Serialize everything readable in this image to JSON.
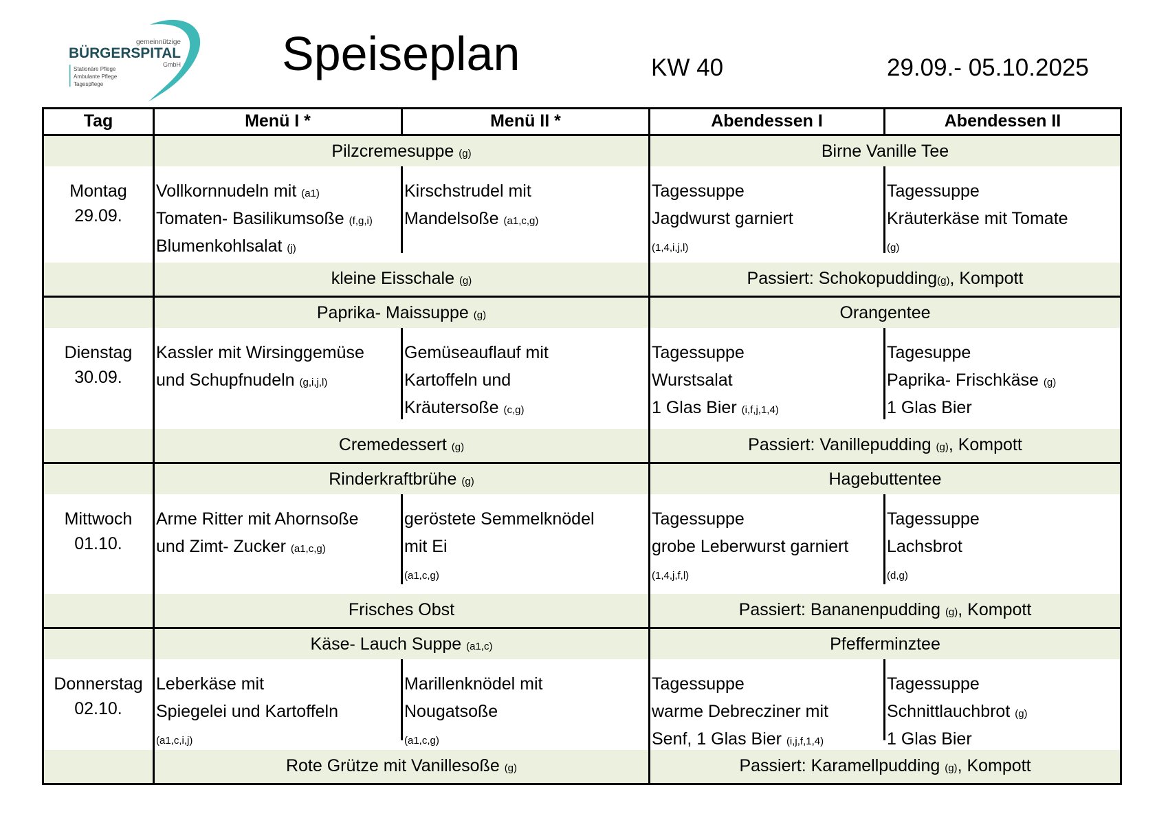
{
  "logo": {
    "line1": "gemeinnützige",
    "name": "BÜRGERSPITAL",
    "suffix": "GmbH",
    "services": [
      "Stationäre Pflege",
      "Ambulante Pflege",
      "Tagespflege"
    ],
    "accent": "#3fb8b8",
    "text_color": "#1f4e5a"
  },
  "header": {
    "title": "Speiseplan",
    "week": "KW 40",
    "date_range": "29.09.- 05.10.2025"
  },
  "columns": [
    "Tag",
    "Menü I *",
    "Menü II *",
    "Abendessen I",
    "Abendessen II"
  ],
  "colors": {
    "band": "#ebf1de",
    "border": "#000000"
  },
  "days": [
    {
      "name": "Montag",
      "date": "29.09.",
      "soup": {
        "text": "Pilzcremesuppe ",
        "al": "(g)"
      },
      "tea": {
        "text": "Birne Vanille Tee",
        "al": ""
      },
      "menu1": [
        {
          "t": "Vollkornnudeln mit  ",
          "a": " (a1)"
        },
        {
          "t": "Tomaten- Basilikumsoße ",
          "a": "(f,g,i)"
        },
        {
          "t": "Blumenkohlsalat ",
          "a": "(j)"
        }
      ],
      "menu2": [
        {
          "t": "Kirschstrudel mit",
          "a": ""
        },
        {
          "t": "Mandelsoße ",
          "a": "(a1,c,g)"
        }
      ],
      "abend1": [
        {
          "t": "Tagessuppe",
          "a": ""
        },
        {
          "t": "Jagdwurst garniert",
          "a": ""
        },
        {
          "t": "",
          "a": "(1,4,i,j,l)"
        }
      ],
      "abend2": [
        {
          "t": "Tagessuppe",
          "a": ""
        },
        {
          "t": "Kräuterkäse mit Tomate",
          "a": ""
        },
        {
          "t": "",
          "a": "(g)"
        }
      ],
      "dessert": {
        "text": "kleine Eisschale ",
        "al": "(g)"
      },
      "evening_dessert": {
        "pre": "Passiert: Schokopudding",
        "al": "(g)",
        "post": ", Kompott"
      }
    },
    {
      "name": "Dienstag",
      "date": "30.09.",
      "soup": {
        "text": "Paprika- Maissuppe ",
        "al": "(g)"
      },
      "tea": {
        "text": "Orangentee",
        "al": ""
      },
      "menu1": [
        {
          "t": "Kassler mit Wirsinggemüse",
          "a": ""
        },
        {
          "t": "und Schupfnudeln ",
          "a": "(g,i,j,l)"
        }
      ],
      "menu2": [
        {
          "t": "Gemüseauflauf mit",
          "a": ""
        },
        {
          "t": "Kartoffeln und",
          "a": ""
        },
        {
          "t": "Kräutersoße ",
          "a": "(c,g)"
        }
      ],
      "abend1": [
        {
          "t": "Tagessuppe",
          "a": ""
        },
        {
          "t": "Wurstsalat",
          "a": ""
        },
        {
          "t": "1 Glas Bier ",
          "a": "(i,f,j,1,4)"
        }
      ],
      "abend2": [
        {
          "t": "Tagesuppe",
          "a": ""
        },
        {
          "t": "Paprika- Frischkäse ",
          "a": "(g)"
        },
        {
          "t": "1 Glas Bier",
          "a": ""
        }
      ],
      "dessert": {
        "text": "Cremedessert ",
        "al": "(g)"
      },
      "evening_dessert": {
        "pre": "Passiert:  Vanillepudding ",
        "al": "(g)",
        "post": ", Kompott"
      }
    },
    {
      "name": "Mittwoch",
      "date": "01.10.",
      "soup": {
        "text": "Rinderkraftbrühe ",
        "al": "(g)"
      },
      "tea": {
        "text": "Hagebuttentee",
        "al": ""
      },
      "menu1": [
        {
          "t": "Arme Ritter mit Ahornsoße",
          "a": ""
        },
        {
          "t": "und Zimt- Zucker  ",
          "a": "(a1,c,g)"
        }
      ],
      "menu2": [
        {
          "t": "geröstete Semmelknödel",
          "a": ""
        },
        {
          "t": "mit Ei",
          "a": ""
        },
        {
          "t": "",
          "a": "(a1,c,g)"
        }
      ],
      "abend1": [
        {
          "t": "Tagessuppe",
          "a": ""
        },
        {
          "t": "grobe Leberwurst garniert",
          "a": ""
        },
        {
          "t": "",
          "a": "(1,4,j,f,l)"
        }
      ],
      "abend2": [
        {
          "t": "Tagessuppe",
          "a": ""
        },
        {
          "t": "Lachsbrot",
          "a": ""
        },
        {
          "t": "",
          "a": "(d,g)"
        }
      ],
      "dessert": {
        "text": "Frisches Obst",
        "al": ""
      },
      "evening_dessert": {
        "pre": "Passiert: Bananenpudding ",
        "al": "(g)",
        "post": ", Kompott"
      }
    },
    {
      "name": "Donnerstag",
      "date": "02.10.",
      "soup": {
        "text": "Käse- Lauch Suppe ",
        "al": "(a1,c)"
      },
      "tea": {
        "text": "Pfefferminztee",
        "al": ""
      },
      "menu1": [
        {
          "t": "Leberkäse mit",
          "a": ""
        },
        {
          "t": "Spiegelei und Kartoffeln",
          "a": ""
        },
        {
          "t": "",
          "a": "(a1,c,i,j)"
        }
      ],
      "menu2": [
        {
          "t": "Marillenknödel mit",
          "a": ""
        },
        {
          "t": "Nougatsoße",
          "a": ""
        },
        {
          "t": "",
          "a": "(a1,c,g)"
        }
      ],
      "abend1": [
        {
          "t": "Tagessuppe",
          "a": ""
        },
        {
          "t": "warme Debrecziner mit",
          "a": ""
        },
        {
          "t": "Senf, 1 Glas Bier ",
          "a": "(i,j,f,1,4)"
        }
      ],
      "abend2": [
        {
          "t": "Tagessuppe",
          "a": ""
        },
        {
          "t": "Schnittlauchbrot ",
          "a": "(g)"
        },
        {
          "t": "1 Glas Bier",
          "a": ""
        }
      ],
      "dessert": {
        "text": "Rote Grütze mit Vanillesoße ",
        "al": "(g)"
      },
      "evening_dessert": {
        "pre": "Passiert: Karamellpudding ",
        "al": "(g)",
        "post": ", Kompott"
      }
    }
  ]
}
